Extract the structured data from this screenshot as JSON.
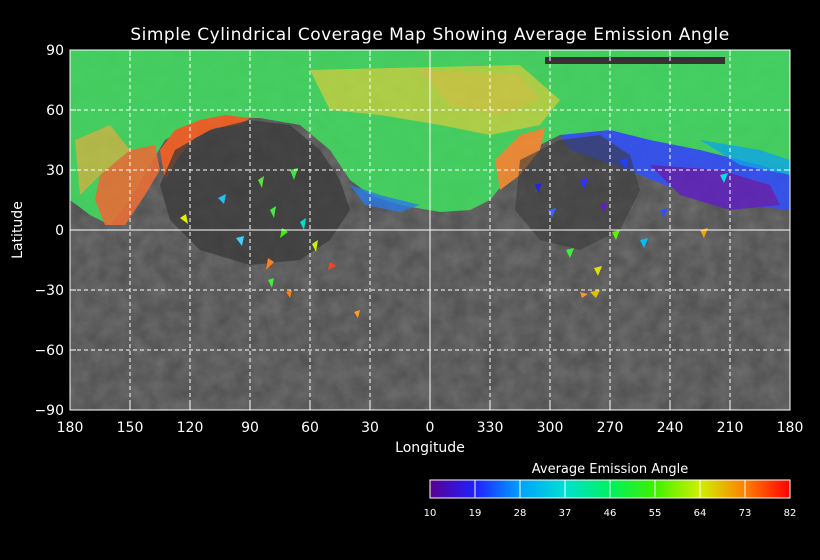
{
  "map": {
    "title": "Simple Cylindrical Coverage Map Showing Average Emission Angle",
    "xlabel": "Longitude",
    "ylabel": "Latitude",
    "x_ticks": [
      "180",
      "150",
      "120",
      "90",
      "60",
      "30",
      "0",
      "330",
      "300",
      "270",
      "240",
      "210",
      "180"
    ],
    "y_ticks": [
      {
        "label": "90",
        "lat": 90
      },
      {
        "label": "60",
        "lat": 60
      },
      {
        "label": "30",
        "lat": 30
      },
      {
        "label": "0",
        "lat": 0
      },
      {
        "label": "−30",
        "lat": -30
      },
      {
        "label": "−60",
        "lat": -60
      },
      {
        "label": "−90",
        "lat": -90
      }
    ],
    "grid": "dashed, every 30 degrees"
  },
  "colorbar": {
    "title": "Average Emission Angle",
    "min": 10,
    "max": 82,
    "ticks": [
      "10",
      "19",
      "28",
      "37",
      "46",
      "55",
      "64",
      "73",
      "82"
    ],
    "colors": [
      "#5a0090",
      "#2020ff",
      "#00a0ff",
      "#00e0d0",
      "#00f060",
      "#40f000",
      "#d0f000",
      "#ff8000",
      "#ff0000"
    ]
  }
}
